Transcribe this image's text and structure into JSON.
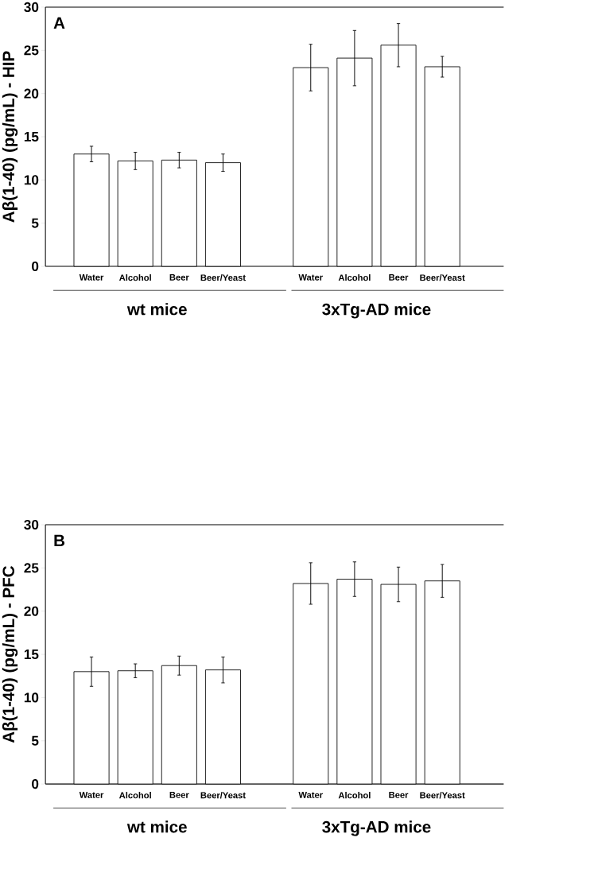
{
  "chart_data": [
    {
      "type": "bar",
      "ylabel": "Aβ(1-40) (pg/mL) - HIP",
      "categories": [
        "Water",
        "Alcohol",
        "Beer",
        "Beer/Yeast",
        null,
        "Water",
        "Alcohol",
        "Beer",
        "Beer/Yeast"
      ],
      "values": [
        13.0,
        12.2,
        12.3,
        12.0,
        null,
        23.0,
        24.1,
        25.6,
        23.1
      ],
      "errors": [
        0.9,
        1.0,
        0.9,
        1.0,
        null,
        2.7,
        3.2,
        2.5,
        1.2
      ],
      "color": "#ffffff",
      "ylim": [
        0,
        30
      ],
      "yticks": [
        0,
        5,
        10,
        15,
        20,
        25,
        30
      ],
      "annotations": [
        "A",
        "wt mice",
        "3xTg-AD mice"
      ]
    },
    {
      "type": "bar",
      "ylabel": "Aβ(1-40) (pg/mL) - PFC",
      "categories": [
        "Water",
        "Alcohol",
        "Beer",
        "Beer/Yeast",
        null,
        "Water",
        "Alcohol",
        "Beer",
        "Beer/Yeast"
      ],
      "values": [
        13.0,
        13.1,
        13.7,
        13.2,
        null,
        23.2,
        23.7,
        23.1,
        23.5
      ],
      "errors": [
        1.7,
        0.8,
        1.1,
        1.5,
        null,
        2.4,
        2.0,
        2.0,
        1.9
      ],
      "color": "#ffffff",
      "ylim": [
        0,
        30
      ],
      "yticks": [
        0,
        5,
        10,
        15,
        20,
        25,
        30
      ],
      "annotations": [
        "B",
        "wt mice",
        "3xTg-AD mice"
      ]
    }
  ]
}
